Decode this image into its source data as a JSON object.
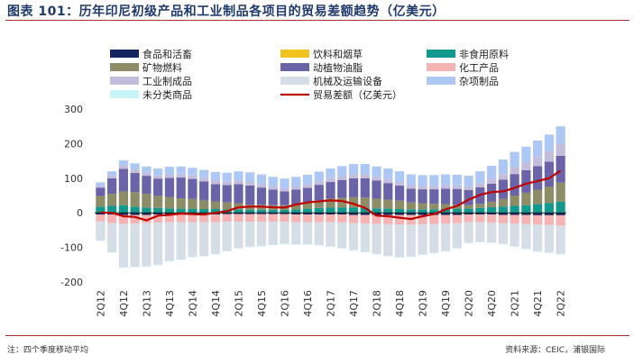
{
  "header": {
    "title": "图表 101：历年印尼初级产品和工业制品各项目的贸易差额趋势（亿美元）"
  },
  "footer": {
    "note": "注：四个季度移动平均",
    "source": "资料来源：CEIC，浦银国际"
  },
  "chart_data": {
    "type": "bar",
    "stacked": true,
    "ylim": [
      -200,
      300
    ],
    "yticks": [
      300,
      200,
      100,
      0,
      -100,
      -200
    ],
    "grid": false,
    "legend_position": "top",
    "categories": [
      "2Q12",
      "3Q12",
      "4Q12",
      "1Q13",
      "2Q13",
      "3Q13",
      "4Q13",
      "1Q14",
      "2Q14",
      "3Q14",
      "4Q14",
      "1Q15",
      "2Q15",
      "3Q15",
      "4Q15",
      "1Q16",
      "2Q16",
      "3Q16",
      "4Q16",
      "1Q17",
      "2Q17",
      "3Q17",
      "4Q17",
      "1Q18",
      "2Q18",
      "3Q18",
      "4Q18",
      "1Q19",
      "2Q19",
      "3Q19",
      "4Q19",
      "1Q20",
      "2Q20",
      "3Q20",
      "4Q20",
      "1Q21",
      "2Q21",
      "3Q21",
      "4Q21",
      "1Q22",
      "2Q22"
    ],
    "xtick_labels": [
      "2Q12",
      "4Q12",
      "2Q13",
      "4Q13",
      "2Q14",
      "4Q14",
      "2Q15",
      "4Q15",
      "2Q16",
      "4Q16",
      "2Q17",
      "4Q17",
      "2Q18",
      "4Q18",
      "2Q19",
      "4Q19",
      "2Q20",
      "4Q20",
      "2Q21",
      "4Q21",
      "2Q22"
    ],
    "series": [
      {
        "name": "食品和活畜",
        "color": "#14245e",
        "kind": "bar",
        "values": [
          -5,
          -5,
          -6,
          -6,
          -6,
          -5,
          -5,
          -5,
          -5,
          -5,
          -5,
          -4,
          -4,
          -4,
          -4,
          -4,
          -4,
          -5,
          -5,
          -5,
          -5,
          -5,
          -6,
          -6,
          -6,
          -6,
          -6,
          -6,
          -6,
          -6,
          -6,
          -6,
          -5,
          -5,
          -5,
          -6,
          -6,
          -6,
          -7,
          -7,
          -7
        ]
      },
      {
        "name": "饮料和烟草",
        "color": "#f2c21f",
        "kind": "bar",
        "values": [
          0,
          0,
          0,
          0,
          0,
          0,
          0,
          0,
          0,
          0,
          0,
          0,
          0,
          0,
          0,
          0,
          0,
          0,
          0,
          0,
          0,
          0,
          0,
          0,
          0,
          0,
          0,
          0,
          0,
          0,
          0,
          0,
          0,
          0,
          0,
          0,
          0,
          0,
          0,
          0,
          0
        ]
      },
      {
        "name": "非食用原料",
        "color": "#11998e",
        "kind": "bar",
        "values": [
          18,
          20,
          22,
          18,
          15,
          14,
          13,
          12,
          12,
          11,
          11,
          10,
          10,
          9,
          9,
          9,
          9,
          10,
          12,
          14,
          15,
          15,
          15,
          14,
          13,
          12,
          11,
          10,
          10,
          10,
          11,
          12,
          12,
          14,
          16,
          18,
          20,
          22,
          25,
          28,
          32
        ]
      },
      {
        "name": "矿物燃料",
        "color": "#8c8c66",
        "kind": "bar",
        "values": [
          30,
          35,
          40,
          42,
          40,
          35,
          33,
          30,
          28,
          25,
          22,
          20,
          18,
          15,
          14,
          13,
          13,
          15,
          18,
          22,
          26,
          28,
          30,
          30,
          28,
          26,
          24,
          20,
          18,
          16,
          14,
          12,
          10,
          12,
          16,
          22,
          30,
          36,
          42,
          48,
          55
        ]
      },
      {
        "name": "动植物油脂",
        "color": "#6b63a8",
        "kind": "bar",
        "values": [
          25,
          45,
          65,
          55,
          52,
          50,
          55,
          60,
          58,
          55,
          50,
          50,
          55,
          55,
          50,
          45,
          40,
          42,
          42,
          45,
          48,
          52,
          55,
          56,
          52,
          48,
          44,
          40,
          40,
          42,
          45,
          45,
          44,
          48,
          52,
          56,
          62,
          65,
          68,
          72,
          78
        ]
      },
      {
        "name": "化工产品",
        "color": "#f5b3b3",
        "kind": "bar",
        "values": [
          -20,
          -24,
          -26,
          -25,
          -24,
          -23,
          -22,
          -22,
          -22,
          -22,
          -22,
          -22,
          -22,
          -22,
          -22,
          -22,
          -22,
          -22,
          -22,
          -22,
          -22,
          -23,
          -24,
          -25,
          -26,
          -27,
          -28,
          -28,
          -27,
          -26,
          -25,
          -24,
          -22,
          -22,
          -23,
          -24,
          -25,
          -26,
          -27,
          -28,
          -30
        ]
      },
      {
        "name": "工业制成品",
        "color": "#c3bddb",
        "kind": "bar",
        "values": [
          5,
          8,
          10,
          10,
          9,
          9,
          10,
          10,
          10,
          10,
          10,
          10,
          10,
          10,
          10,
          9,
          9,
          9,
          10,
          10,
          11,
          11,
          11,
          11,
          11,
          11,
          10,
          10,
          10,
          10,
          10,
          10,
          10,
          12,
          14,
          16,
          20,
          22,
          26,
          30,
          35
        ]
      },
      {
        "name": "机械及运输设备",
        "color": "#d5dde7",
        "kind": "bar",
        "values": [
          -55,
          -85,
          -125,
          -125,
          -125,
          -122,
          -112,
          -108,
          -100,
          -98,
          -92,
          -84,
          -76,
          -72,
          -70,
          -66,
          -64,
          -64,
          -64,
          -66,
          -70,
          -74,
          -78,
          -82,
          -87,
          -92,
          -94,
          -92,
          -88,
          -84,
          -80,
          -72,
          -60,
          -57,
          -58,
          -60,
          -66,
          -72,
          -78,
          -80,
          -82
        ]
      },
      {
        "name": "杂项制品",
        "color": "#aec8f5",
        "kind": "bar",
        "values": [
          10,
          12,
          15,
          18,
          18,
          20,
          22,
          22,
          22,
          23,
          25,
          26,
          27,
          28,
          28,
          28,
          28,
          28,
          28,
          28,
          28,
          29,
          30,
          30,
          30,
          31,
          31,
          31,
          31,
          31,
          31,
          31,
          31,
          34,
          38,
          42,
          44,
          46,
          48,
          48,
          50
        ]
      },
      {
        "name": "未分类商品",
        "color": "#c8f4f8",
        "kind": "bar",
        "values": [
          -1,
          -1,
          -1,
          -1,
          -1,
          -1,
          -1,
          -1,
          -1,
          -1,
          -1,
          -1,
          -1,
          -1,
          -1,
          -1,
          -1,
          -1,
          -1,
          -1,
          -1,
          -1,
          -1,
          -1,
          -1,
          -1,
          -1,
          -1,
          -1,
          -1,
          -1,
          -1,
          -1,
          -1,
          -1,
          -1,
          -1,
          -1,
          -1,
          -1,
          -1
        ]
      },
      {
        "name": "贸易差额（亿美元）",
        "color": "#c00000",
        "kind": "line",
        "values": [
          1,
          0,
          -10,
          -12,
          -22,
          -8,
          -6,
          -2,
          -4,
          -5,
          0,
          5,
          16,
          18,
          18,
          16,
          15,
          24,
          30,
          33,
          36,
          34,
          26,
          14,
          -8,
          -10,
          -14,
          -18,
          -10,
          -4,
          10,
          20,
          38,
          52,
          60,
          62,
          72,
          84,
          92,
          100,
          122
        ]
      }
    ]
  }
}
